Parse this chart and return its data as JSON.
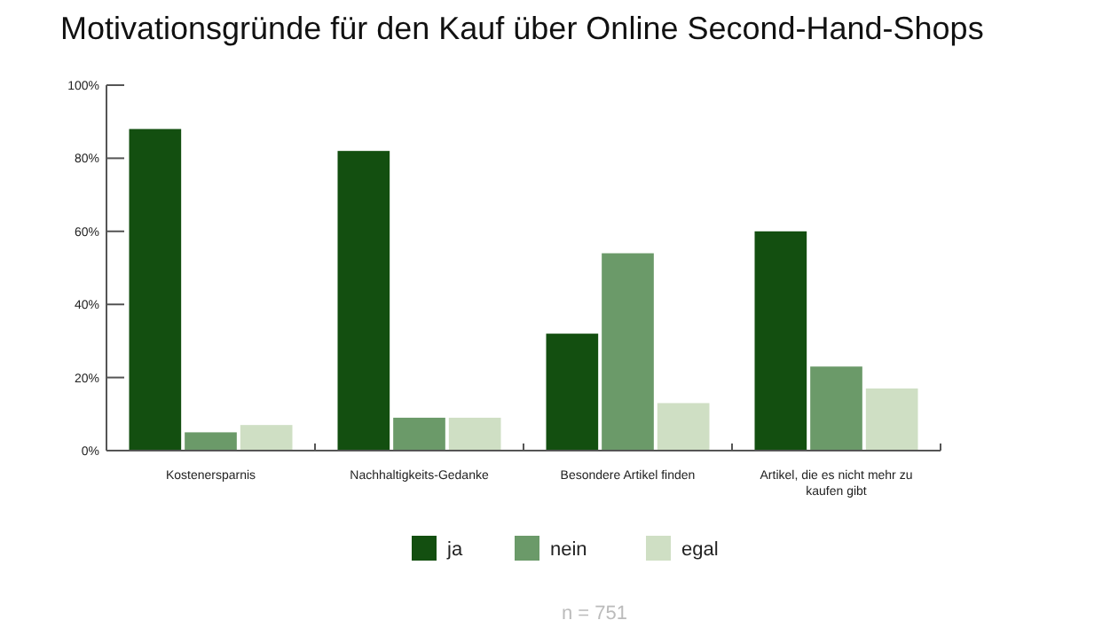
{
  "chart_data": {
    "type": "bar",
    "title": "Motivationsgründe für den Kauf über Online Second-Hand-Shops",
    "categories": [
      "Kostenersparnis",
      "Nachhaltigkeits-Gedanke",
      "Besondere Artikel finden",
      "Artikel, die es nicht mehr zu kaufen gibt"
    ],
    "series": [
      {
        "name": "ja",
        "color": "#134f10",
        "values": [
          88,
          82,
          32,
          60
        ]
      },
      {
        "name": "nein",
        "color": "#6b9a69",
        "values": [
          5,
          9,
          54,
          23
        ]
      },
      {
        "name": "egal",
        "color": "#cfdfc4",
        "values": [
          7,
          9,
          13,
          17
        ]
      }
    ],
    "ylim": [
      0,
      100
    ],
    "yticks": [
      {
        "value": 0,
        "label": "0%"
      },
      {
        "value": 20,
        "label": "20%"
      },
      {
        "value": 40,
        "label": "40%"
      },
      {
        "value": 60,
        "label": "60%"
      },
      {
        "value": 80,
        "label": "80%"
      },
      {
        "value": 100,
        "label": "100%"
      }
    ],
    "grid": false,
    "legend": "bottom",
    "annotations": [
      "n = 751"
    ]
  }
}
